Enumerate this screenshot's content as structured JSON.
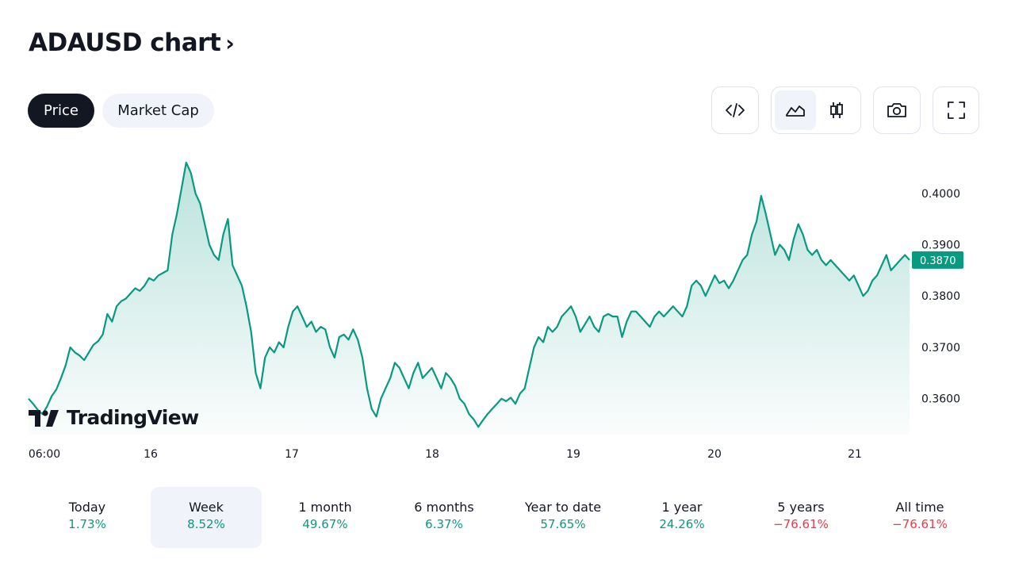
{
  "header": {
    "title": "ADAUSD chart",
    "chevron": "›"
  },
  "toggles": [
    {
      "label": "Price",
      "active": true
    },
    {
      "label": "Market Cap",
      "active": false
    }
  ],
  "toolbar": {
    "icons": [
      "embed-code-icon",
      "area-chart-icon",
      "candlestick-icon",
      "camera-icon",
      "fullscreen-icon"
    ],
    "selected": "area-chart-icon"
  },
  "brand": {
    "name": "TradingView"
  },
  "colors": {
    "line": "#089981",
    "positive": "#089981",
    "negative": "#f23645",
    "text": "#131722",
    "pill_bg": "#f0f3fa"
  },
  "chart_data": {
    "type": "area",
    "title": "",
    "x_ticks": [
      "06:00",
      "16",
      "17",
      "18",
      "19",
      "20",
      "21"
    ],
    "y_ticks": [
      "0.4000",
      "0.3900",
      "0.3800",
      "0.3700",
      "0.3600"
    ],
    "ylim": [
      0.353,
      0.408
    ],
    "last_price": "0.3870",
    "grid": false,
    "series": [
      {
        "values": [
          0.36,
          0.359,
          0.3578,
          0.357,
          0.3585,
          0.3605,
          0.3618,
          0.364,
          0.3665,
          0.37,
          0.369,
          0.3684,
          0.3675,
          0.369,
          0.3705,
          0.3712,
          0.3725,
          0.3765,
          0.375,
          0.378,
          0.379,
          0.3795,
          0.3805,
          0.3815,
          0.381,
          0.382,
          0.3835,
          0.383,
          0.384,
          0.3845,
          0.385,
          0.392,
          0.396,
          0.401,
          0.406,
          0.404,
          0.4,
          0.398,
          0.394,
          0.39,
          0.388,
          0.387,
          0.392,
          0.395,
          0.386,
          0.384,
          0.382,
          0.378,
          0.373,
          0.365,
          0.362,
          0.368,
          0.37,
          0.369,
          0.371,
          0.37,
          0.374,
          0.377,
          0.378,
          0.376,
          0.374,
          0.375,
          0.373,
          0.374,
          0.3735,
          0.37,
          0.368,
          0.372,
          0.3725,
          0.3715,
          0.3735,
          0.3715,
          0.368,
          0.362,
          0.358,
          0.3565,
          0.36,
          0.362,
          0.364,
          0.367,
          0.366,
          0.364,
          0.362,
          0.365,
          0.367,
          0.364,
          0.365,
          0.366,
          0.364,
          0.362,
          0.365,
          0.364,
          0.3625,
          0.36,
          0.359,
          0.357,
          0.356,
          0.3545,
          0.3558,
          0.357,
          0.358,
          0.359,
          0.36,
          0.3595,
          0.3602,
          0.359,
          0.361,
          0.362,
          0.366,
          0.37,
          0.372,
          0.371,
          0.374,
          0.373,
          0.374,
          0.376,
          0.377,
          0.378,
          0.376,
          0.373,
          0.3745,
          0.376,
          0.374,
          0.373,
          0.376,
          0.3765,
          0.376,
          0.376,
          0.372,
          0.375,
          0.377,
          0.377,
          0.376,
          0.375,
          0.374,
          0.376,
          0.377,
          0.376,
          0.377,
          0.378,
          0.377,
          0.376,
          0.378,
          0.382,
          0.383,
          0.382,
          0.38,
          0.382,
          0.384,
          0.3825,
          0.383,
          0.3815,
          0.383,
          0.385,
          0.387,
          0.388,
          0.392,
          0.3945,
          0.3995,
          0.396,
          0.392,
          0.388,
          0.39,
          0.389,
          0.387,
          0.391,
          0.394,
          0.392,
          0.389,
          0.388,
          0.389,
          0.387,
          0.386,
          0.387,
          0.386,
          0.385,
          0.384,
          0.383,
          0.384,
          0.382,
          0.38,
          0.381,
          0.383,
          0.384,
          0.386,
          0.388,
          0.385,
          0.386,
          0.387,
          0.388,
          0.387
        ]
      }
    ]
  },
  "performance": [
    {
      "label": "Today",
      "value": "1.73%",
      "dir": "up",
      "selected": false
    },
    {
      "label": "Week",
      "value": "8.52%",
      "dir": "up",
      "selected": true
    },
    {
      "label": "1 month",
      "value": "49.67%",
      "dir": "up",
      "selected": false
    },
    {
      "label": "6 months",
      "value": "6.37%",
      "dir": "up",
      "selected": false
    },
    {
      "label": "Year to date",
      "value": "57.65%",
      "dir": "up",
      "selected": false
    },
    {
      "label": "1 year",
      "value": "24.26%",
      "dir": "up",
      "selected": false
    },
    {
      "label": "5 years",
      "value": "−76.61%",
      "dir": "down",
      "selected": false
    },
    {
      "label": "All time",
      "value": "−76.61%",
      "dir": "down",
      "selected": false
    }
  ]
}
